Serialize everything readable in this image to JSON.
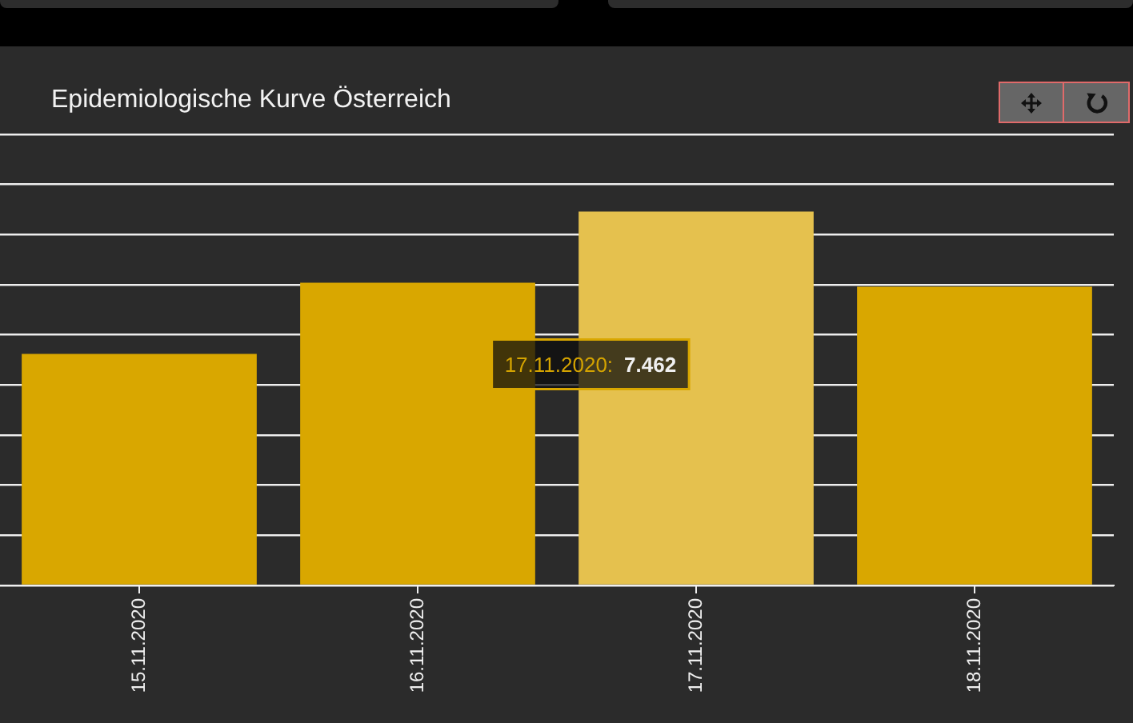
{
  "chart_data": {
    "type": "bar",
    "title": "Epidemiologische Kurve Österreich",
    "categories": [
      "15.11.2020",
      "16.11.2020",
      "17.11.2020",
      "18.11.2020"
    ],
    "values": [
      4620,
      6040,
      7462,
      5960
    ],
    "colors": [
      "#d9a700",
      "#d9a700",
      "#e5c14e",
      "#d9a700"
    ],
    "value_labels": [
      null,
      null,
      "7.462",
      null
    ],
    "annotations": [
      "17.11.2020:"
    ],
    "ylim": [
      0,
      9000
    ],
    "yticks": [
      {
        "value": 0,
        "label": null
      },
      {
        "value": 1000,
        "label": null
      },
      {
        "value": 2000,
        "label": null
      },
      {
        "value": 3000,
        "label": null
      },
      {
        "value": 4000,
        "label": null
      },
      {
        "value": 5000,
        "label": null
      },
      {
        "value": 6000,
        "label": null
      },
      {
        "value": 7000,
        "label": null
      },
      {
        "value": 8000,
        "label": null
      },
      {
        "value": 9000,
        "label": null
      }
    ],
    "grid": "y",
    "tick_labels": "x"
  }
}
